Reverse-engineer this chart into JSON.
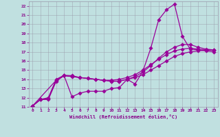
{
  "bg_color": "#c0e0e0",
  "line_color": "#990099",
  "grid_color": "#9999aa",
  "xlabel": "Windchill (Refroidissement éolien,°C)",
  "xlabel_color": "#880088",
  "tick_color": "#880088",
  "xlim": [
    -0.5,
    23.5
  ],
  "ylim": [
    11,
    22.5
  ],
  "xticks": [
    0,
    1,
    2,
    3,
    4,
    5,
    6,
    7,
    8,
    9,
    10,
    11,
    12,
    13,
    14,
    15,
    16,
    17,
    18,
    19,
    20,
    21,
    22,
    23
  ],
  "yticks": [
    11,
    12,
    13,
    14,
    15,
    16,
    17,
    18,
    19,
    20,
    21,
    22
  ],
  "line1_x": [
    0,
    1,
    2,
    3,
    4,
    5,
    6,
    7,
    8,
    9,
    10,
    11,
    12,
    13,
    14,
    15,
    16,
    17,
    18,
    19,
    20,
    21,
    22,
    23
  ],
  "line1_y": [
    11.1,
    11.8,
    11.8,
    13.8,
    14.4,
    12.1,
    12.5,
    12.7,
    12.7,
    12.7,
    13.0,
    13.1,
    14.0,
    13.5,
    14.9,
    17.4,
    20.5,
    21.6,
    22.2,
    18.7,
    17.3,
    17.2,
    17.1,
    17.0
  ],
  "line2_x": [
    0,
    1,
    2,
    3,
    4,
    5,
    6,
    7,
    8,
    9,
    10,
    11,
    12,
    13,
    14,
    15,
    16,
    17,
    18,
    19,
    20,
    21,
    22,
    23
  ],
  "line2_y": [
    11.1,
    11.8,
    11.9,
    13.9,
    14.4,
    14.3,
    14.2,
    14.1,
    14.0,
    13.9,
    13.8,
    13.8,
    14.0,
    14.2,
    14.5,
    15.0,
    15.5,
    16.0,
    16.5,
    16.8,
    17.0,
    17.1,
    17.2,
    17.2
  ],
  "line3_x": [
    0,
    1,
    2,
    3,
    4,
    5,
    6,
    7,
    8,
    9,
    10,
    11,
    12,
    13,
    14,
    15,
    16,
    17,
    18,
    19,
    20,
    21,
    22,
    23
  ],
  "line3_y": [
    11.1,
    11.8,
    12.0,
    14.0,
    14.45,
    14.4,
    14.2,
    14.1,
    14.0,
    13.9,
    13.9,
    14.0,
    14.2,
    14.5,
    15.0,
    15.6,
    16.2,
    16.7,
    17.1,
    17.3,
    17.4,
    17.3,
    17.2,
    17.2
  ],
  "line4_x": [
    0,
    3,
    4,
    10,
    11,
    12,
    13,
    14,
    15,
    16,
    17,
    18,
    19,
    20,
    21,
    22,
    23
  ],
  "line4_y": [
    11.1,
    13.9,
    14.4,
    13.8,
    13.8,
    14.0,
    14.3,
    14.8,
    15.5,
    16.3,
    17.0,
    17.5,
    17.8,
    17.8,
    17.5,
    17.3,
    17.2
  ]
}
